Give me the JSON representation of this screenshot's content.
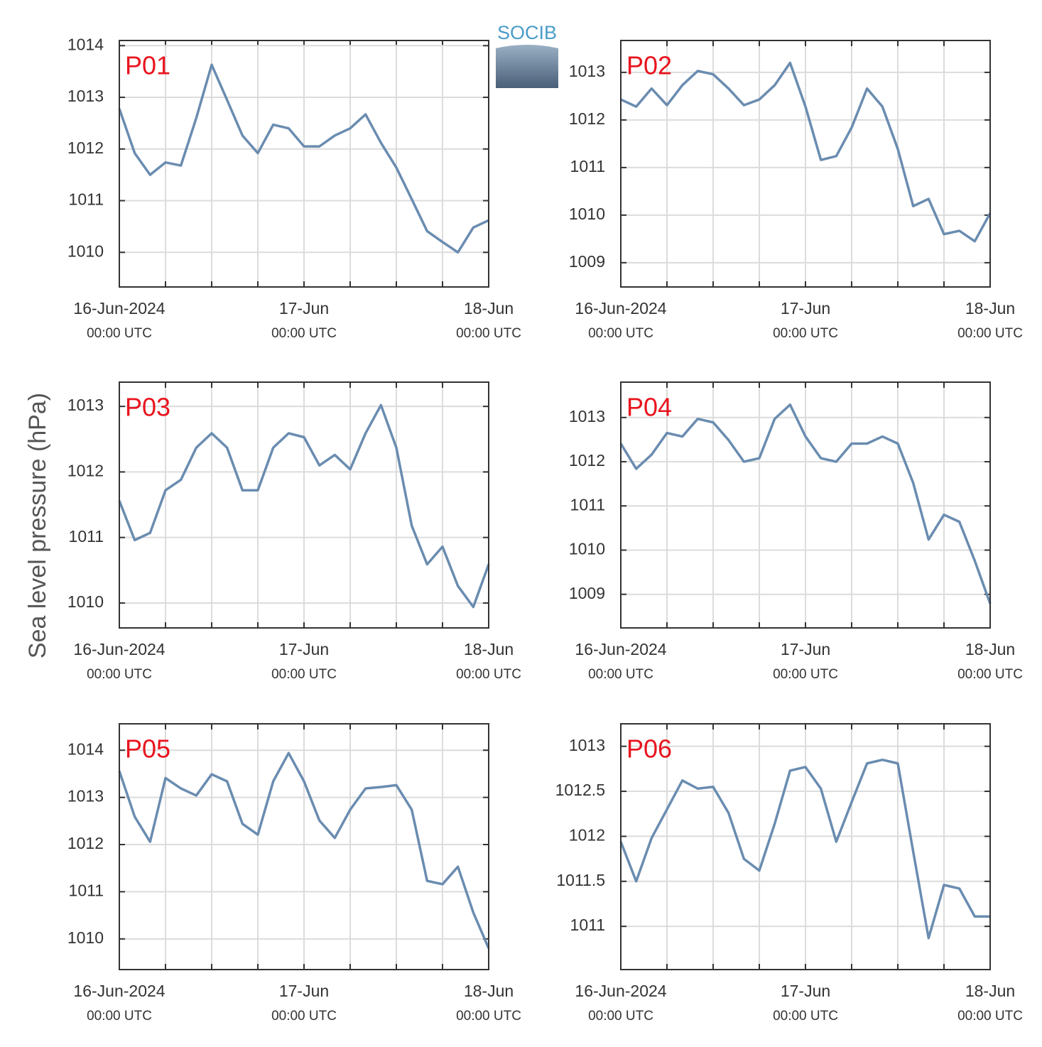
{
  "ylabel": "Sea level pressure (hPa)",
  "logo": "SOCIB",
  "chart_data": [
    {
      "type": "line",
      "title": "P01",
      "color": "#6a8cb0",
      "x": [
        "2024-06-16T00:00",
        "2024-06-16T02:00",
        "2024-06-16T04:00",
        "2024-06-16T06:00",
        "2024-06-16T08:00",
        "2024-06-16T10:00",
        "2024-06-16T12:00",
        "2024-06-16T14:00",
        "2024-06-16T16:00",
        "2024-06-16T18:00",
        "2024-06-16T20:00",
        "2024-06-16T22:00",
        "2024-06-17T00:00",
        "2024-06-17T02:00",
        "2024-06-17T04:00",
        "2024-06-17T06:00",
        "2024-06-17T08:00",
        "2024-06-17T10:00",
        "2024-06-17T12:00",
        "2024-06-17T14:00",
        "2024-06-17T16:00",
        "2024-06-17T18:00",
        "2024-06-17T20:00",
        "2024-06-17T22:00",
        "2024-06-18T00:00"
      ],
      "values": [
        1012.78,
        1011.92,
        1011.5,
        1011.74,
        1011.68,
        1012.6,
        1013.63,
        1012.95,
        1012.26,
        1011.92,
        1012.47,
        1012.4,
        1012.05,
        1012.05,
        1012.26,
        1012.4,
        1012.67,
        1012.12,
        1011.64,
        1011.03,
        1010.41,
        1010.2,
        1010.0,
        1010.48,
        1010.62
      ],
      "xlim": [
        "2024-06-16T00:00",
        "2024-06-18T00:00"
      ],
      "xticks": [
        {
          "value": "2024-06-16T00:00",
          "label": [
            "16-Jun-2024",
            "00:00 UTC"
          ]
        },
        {
          "value": "2024-06-17T00:00",
          "label": [
            "17-Jun",
            "00:00 UTC"
          ]
        },
        {
          "value": "2024-06-18T00:00",
          "label": [
            "18-Jun",
            "00:00 UTC"
          ]
        }
      ],
      "xgrid": [
        "2024-06-16T06:00",
        "2024-06-16T12:00",
        "2024-06-16T18:00",
        "2024-06-17T06:00",
        "2024-06-17T12:00",
        "2024-06-17T18:00"
      ],
      "ylim": [
        1009.33,
        1014.1
      ],
      "yticks": [
        1010,
        1011,
        1012,
        1013,
        1014
      ],
      "grid": true
    },
    {
      "type": "line",
      "title": "P02",
      "color": "#6a8cb0",
      "x": [
        "2024-06-16T00:00",
        "2024-06-16T02:00",
        "2024-06-16T04:00",
        "2024-06-16T06:00",
        "2024-06-16T08:00",
        "2024-06-16T10:00",
        "2024-06-16T12:00",
        "2024-06-16T14:00",
        "2024-06-16T16:00",
        "2024-06-16T18:00",
        "2024-06-16T20:00",
        "2024-06-16T22:00",
        "2024-06-17T00:00",
        "2024-06-17T02:00",
        "2024-06-17T04:00",
        "2024-06-17T06:00",
        "2024-06-17T08:00",
        "2024-06-17T10:00",
        "2024-06-17T12:00",
        "2024-06-17T14:00",
        "2024-06-17T16:00",
        "2024-06-17T18:00",
        "2024-06-17T20:00",
        "2024-06-17T22:00",
        "2024-06-18T00:00"
      ],
      "values": [
        1012.43,
        1012.28,
        1012.66,
        1012.31,
        1012.73,
        1013.03,
        1012.96,
        1012.66,
        1012.31,
        1012.43,
        1012.73,
        1013.2,
        1012.28,
        1011.16,
        1011.24,
        1011.84,
        1012.66,
        1012.28,
        1011.39,
        1010.19,
        1010.34,
        1009.6,
        1009.67,
        1009.45,
        1010.04
      ],
      "xlim": [
        "2024-06-16T00:00",
        "2024-06-18T00:00"
      ],
      "xticks": [
        {
          "value": "2024-06-16T00:00",
          "label": [
            "16-Jun-2024",
            "00:00 UTC"
          ]
        },
        {
          "value": "2024-06-17T00:00",
          "label": [
            "17-Jun",
            "00:00 UTC"
          ]
        },
        {
          "value": "2024-06-18T00:00",
          "label": [
            "18-Jun",
            "00:00 UTC"
          ]
        }
      ],
      "xgrid": [
        "2024-06-16T06:00",
        "2024-06-16T12:00",
        "2024-06-16T18:00",
        "2024-06-17T06:00",
        "2024-06-17T12:00",
        "2024-06-17T18:00"
      ],
      "ylim": [
        1008.49,
        1013.67
      ],
      "yticks": [
        1009,
        1010,
        1011,
        1012,
        1013
      ],
      "grid": true
    },
    {
      "type": "line",
      "title": "P03",
      "color": "#6a8cb0",
      "x": [
        "2024-06-16T00:00",
        "2024-06-16T02:00",
        "2024-06-16T04:00",
        "2024-06-16T06:00",
        "2024-06-16T08:00",
        "2024-06-16T10:00",
        "2024-06-16T12:00",
        "2024-06-16T14:00",
        "2024-06-16T16:00",
        "2024-06-16T18:00",
        "2024-06-16T20:00",
        "2024-06-16T22:00",
        "2024-06-17T00:00",
        "2024-06-17T02:00",
        "2024-06-17T04:00",
        "2024-06-17T06:00",
        "2024-06-17T08:00",
        "2024-06-17T10:00",
        "2024-06-17T12:00",
        "2024-06-17T14:00",
        "2024-06-17T16:00",
        "2024-06-17T18:00",
        "2024-06-17T20:00",
        "2024-06-17T22:00",
        "2024-06-18T00:00"
      ],
      "values": [
        1011.56,
        1010.96,
        1011.07,
        1011.72,
        1011.88,
        1012.37,
        1012.59,
        1012.37,
        1011.72,
        1011.72,
        1012.37,
        1012.59,
        1012.53,
        1012.1,
        1012.26,
        1012.04,
        1012.59,
        1013.02,
        1012.37,
        1011.18,
        1010.59,
        1010.86,
        1010.26,
        1009.94,
        1010.59
      ],
      "xlim": [
        "2024-06-16T00:00",
        "2024-06-18T00:00"
      ],
      "xticks": [
        {
          "value": "2024-06-16T00:00",
          "label": [
            "16-Jun-2024",
            "00:00 UTC"
          ]
        },
        {
          "value": "2024-06-17T00:00",
          "label": [
            "17-Jun",
            "00:00 UTC"
          ]
        },
        {
          "value": "2024-06-18T00:00",
          "label": [
            "18-Jun",
            "00:00 UTC"
          ]
        }
      ],
      "xgrid": [
        "2024-06-16T06:00",
        "2024-06-16T12:00",
        "2024-06-16T18:00",
        "2024-06-17T06:00",
        "2024-06-17T12:00",
        "2024-06-17T18:00"
      ],
      "ylim": [
        1009.62,
        1013.37
      ],
      "yticks": [
        1010,
        1011,
        1012,
        1013
      ],
      "grid": true
    },
    {
      "type": "line",
      "title": "P04",
      "color": "#6a8cb0",
      "x": [
        "2024-06-16T00:00",
        "2024-06-16T02:00",
        "2024-06-16T04:00",
        "2024-06-16T06:00",
        "2024-06-16T08:00",
        "2024-06-16T10:00",
        "2024-06-16T12:00",
        "2024-06-16T14:00",
        "2024-06-16T16:00",
        "2024-06-16T18:00",
        "2024-06-16T20:00",
        "2024-06-16T22:00",
        "2024-06-17T00:00",
        "2024-06-17T02:00",
        "2024-06-17T04:00",
        "2024-06-17T06:00",
        "2024-06-17T08:00",
        "2024-06-17T10:00",
        "2024-06-17T12:00",
        "2024-06-17T14:00",
        "2024-06-17T16:00",
        "2024-06-17T18:00",
        "2024-06-17T20:00",
        "2024-06-17T22:00",
        "2024-06-18T00:00"
      ],
      "values": [
        1012.41,
        1011.84,
        1012.16,
        1012.65,
        1012.57,
        1012.97,
        1012.89,
        1012.49,
        1012.0,
        1012.08,
        1012.97,
        1013.29,
        1012.57,
        1012.08,
        1012.0,
        1012.41,
        1012.41,
        1012.57,
        1012.41,
        1011.52,
        1010.24,
        1010.8,
        1010.64,
        1009.76,
        1008.79
      ],
      "xlim": [
        "2024-06-16T00:00",
        "2024-06-18T00:00"
      ],
      "xticks": [
        {
          "value": "2024-06-16T00:00",
          "label": [
            "16-Jun-2024",
            "00:00 UTC"
          ]
        },
        {
          "value": "2024-06-17T00:00",
          "label": [
            "17-Jun",
            "00:00 UTC"
          ]
        },
        {
          "value": "2024-06-18T00:00",
          "label": [
            "18-Jun",
            "00:00 UTC"
          ]
        }
      ],
      "xgrid": [
        "2024-06-16T06:00",
        "2024-06-16T12:00",
        "2024-06-16T18:00",
        "2024-06-17T06:00",
        "2024-06-17T12:00",
        "2024-06-17T18:00"
      ],
      "ylim": [
        1008.24,
        1013.8
      ],
      "yticks": [
        1009,
        1010,
        1011,
        1012,
        1013
      ],
      "grid": true
    },
    {
      "type": "line",
      "title": "P05",
      "color": "#6a8cb0",
      "x": [
        "2024-06-16T00:00",
        "2024-06-16T02:00",
        "2024-06-16T04:00",
        "2024-06-16T06:00",
        "2024-06-16T08:00",
        "2024-06-16T10:00",
        "2024-06-16T12:00",
        "2024-06-16T14:00",
        "2024-06-16T16:00",
        "2024-06-16T18:00",
        "2024-06-16T20:00",
        "2024-06-16T22:00",
        "2024-06-17T00:00",
        "2024-06-17T02:00",
        "2024-06-17T04:00",
        "2024-06-17T06:00",
        "2024-06-17T08:00",
        "2024-06-17T10:00",
        "2024-06-17T12:00",
        "2024-06-17T14:00",
        "2024-06-17T16:00",
        "2024-06-17T18:00",
        "2024-06-17T20:00",
        "2024-06-17T22:00",
        "2024-06-18T00:00"
      ],
      "values": [
        1013.56,
        1012.59,
        1012.06,
        1013.41,
        1013.19,
        1013.04,
        1013.49,
        1013.34,
        1012.44,
        1012.21,
        1013.34,
        1013.94,
        1013.34,
        1012.51,
        1012.14,
        1012.74,
        1013.19,
        1013.22,
        1013.26,
        1012.74,
        1011.23,
        1011.16,
        1011.53,
        1010.56,
        1009.8
      ],
      "xlim": [
        "2024-06-16T00:00",
        "2024-06-18T00:00"
      ],
      "xticks": [
        {
          "value": "2024-06-16T00:00",
          "label": [
            "16-Jun-2024",
            "00:00 UTC"
          ]
        },
        {
          "value": "2024-06-17T00:00",
          "label": [
            "17-Jun",
            "00:00 UTC"
          ]
        },
        {
          "value": "2024-06-18T00:00",
          "label": [
            "18-Jun",
            "00:00 UTC"
          ]
        }
      ],
      "xgrid": [
        "2024-06-16T06:00",
        "2024-06-16T12:00",
        "2024-06-16T18:00",
        "2024-06-17T06:00",
        "2024-06-17T12:00",
        "2024-06-17T18:00"
      ],
      "ylim": [
        1009.35,
        1014.56
      ],
      "yticks": [
        1010,
        1011,
        1012,
        1013,
        1014
      ],
      "grid": true
    },
    {
      "type": "line",
      "title": "P06",
      "color": "#6a8cb0",
      "x": [
        "2024-06-16T00:00",
        "2024-06-16T02:00",
        "2024-06-16T04:00",
        "2024-06-16T06:00",
        "2024-06-16T08:00",
        "2024-06-16T10:00",
        "2024-06-16T12:00",
        "2024-06-16T14:00",
        "2024-06-16T16:00",
        "2024-06-16T18:00",
        "2024-06-16T20:00",
        "2024-06-16T22:00",
        "2024-06-17T00:00",
        "2024-06-17T02:00",
        "2024-06-17T04:00",
        "2024-06-17T06:00",
        "2024-06-17T08:00",
        "2024-06-17T10:00",
        "2024-06-17T12:00",
        "2024-06-17T14:00",
        "2024-06-17T16:00",
        "2024-06-17T18:00",
        "2024-06-17T20:00",
        "2024-06-17T22:00",
        "2024-06-18T00:00"
      ],
      "values": [
        1011.94,
        1011.5,
        1011.98,
        1012.3,
        1012.62,
        1012.53,
        1012.55,
        1012.26,
        1011.75,
        1011.62,
        1012.14,
        1012.73,
        1012.77,
        1012.53,
        1011.94,
        1012.38,
        1012.81,
        1012.85,
        1012.81,
        1011.83,
        1010.87,
        1011.46,
        1011.42,
        1011.11,
        1011.11
      ],
      "xlim": [
        "2024-06-16T00:00",
        "2024-06-18T00:00"
      ],
      "xticks": [
        {
          "value": "2024-06-16T00:00",
          "label": [
            "16-Jun-2024",
            "00:00 UTC"
          ]
        },
        {
          "value": "2024-06-17T00:00",
          "label": [
            "17-Jun",
            "00:00 UTC"
          ]
        },
        {
          "value": "2024-06-18T00:00",
          "label": [
            "18-Jun",
            "00:00 UTC"
          ]
        }
      ],
      "xgrid": [
        "2024-06-16T06:00",
        "2024-06-16T12:00",
        "2024-06-16T18:00",
        "2024-06-17T06:00",
        "2024-06-17T12:00",
        "2024-06-17T18:00"
      ],
      "ylim": [
        1010.52,
        1013.25
      ],
      "yticks": [
        1011,
        1011.5,
        1012,
        1012.5,
        1013
      ],
      "grid": true
    }
  ]
}
